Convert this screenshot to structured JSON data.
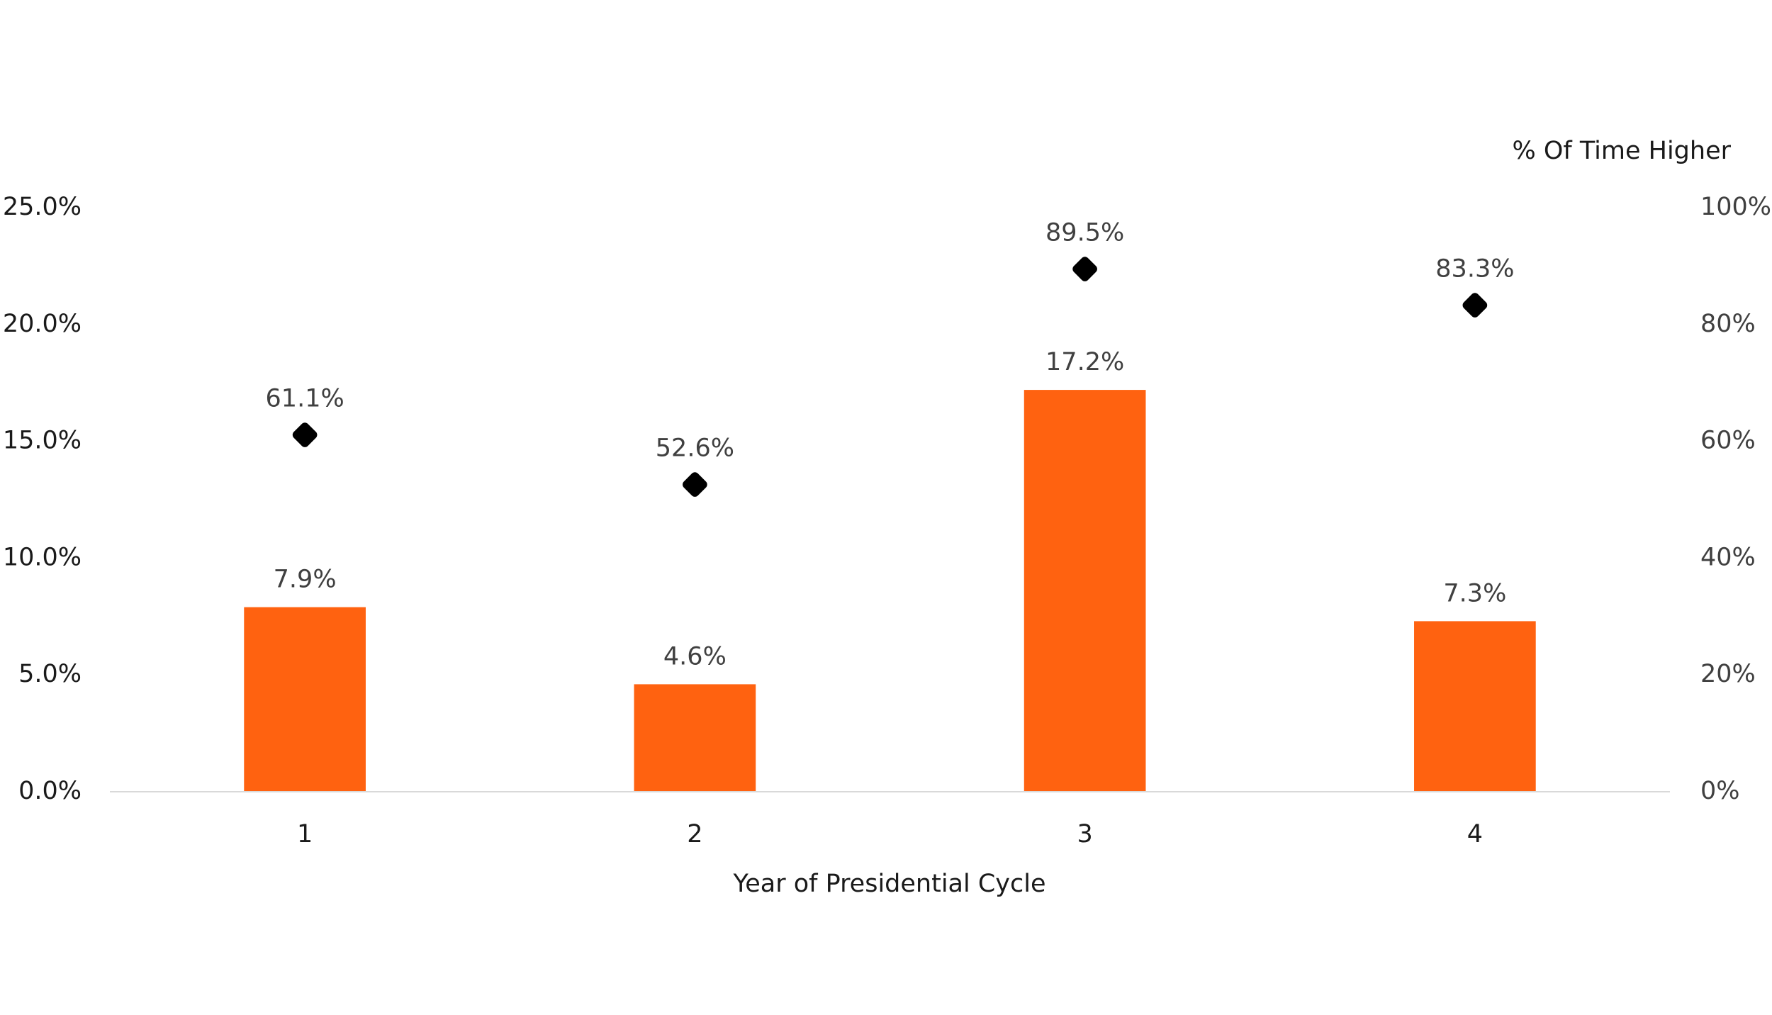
{
  "chart_data": {
    "type": "bar",
    "x_label": "Year of Presidential Cycle",
    "y2_label": "% Of Time Higher",
    "categories": [
      "1",
      "2",
      "3",
      "4"
    ],
    "series": [
      {
        "type": "bar",
        "color": "#ff6210",
        "values": [
          7.9,
          4.6,
          17.2,
          7.3
        ],
        "value_labels": [
          "7.9%",
          "4.6%",
          "17.2%",
          "7.3%"
        ]
      },
      {
        "type": "scatter",
        "axis": "y2",
        "color": "#000000",
        "values": [
          61.1,
          52.6,
          89.5,
          83.3
        ],
        "value_labels": [
          "61.1%",
          "52.6%",
          "89.5%",
          "83.3%"
        ]
      }
    ],
    "ylim": [
      0,
      25
    ],
    "yticks": [
      {
        "value": 0,
        "label": "0.0%"
      },
      {
        "value": 5,
        "label": "5.0%"
      },
      {
        "value": 10,
        "label": "10.0%"
      },
      {
        "value": 15,
        "label": "15.0%"
      },
      {
        "value": 20,
        "label": "20.0%"
      },
      {
        "value": 25,
        "label": "25.0%"
      }
    ],
    "y2lim": [
      0,
      100
    ],
    "y2ticks": [
      {
        "value": 0,
        "label": "0%"
      },
      {
        "value": 20,
        "label": "20%"
      },
      {
        "value": 40,
        "label": "40%"
      },
      {
        "value": 60,
        "label": "60%"
      },
      {
        "value": 80,
        "label": "80%"
      },
      {
        "value": 100,
        "label": "100%"
      }
    ],
    "grid": false
  }
}
